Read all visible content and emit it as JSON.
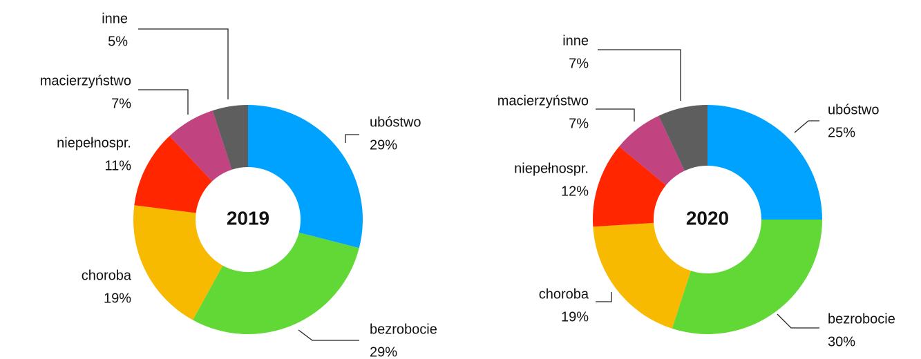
{
  "chart_data": [
    {
      "type": "pie",
      "title": "2019",
      "categories": [
        "ubóstwo",
        "bezrobocie",
        "choroba",
        "niepełnospr.",
        "macierzyństwo",
        "inne"
      ],
      "values": [
        29,
        29,
        19,
        11,
        7,
        5
      ],
      "value_labels": [
        "29%",
        "29%",
        "19%",
        "11%",
        "7%",
        "5%"
      ],
      "colors": [
        "#00a2ff",
        "#61d836",
        "#f8ba00",
        "#ff2600",
        "#c1437f",
        "#5e5e5e"
      ]
    },
    {
      "type": "pie",
      "title": "2020",
      "categories": [
        "ubóstwo",
        "bezrobocie",
        "choroba",
        "niepełnospr.",
        "macierzyństwo",
        "inne"
      ],
      "values": [
        25,
        30,
        19,
        12,
        7,
        7
      ],
      "value_labels": [
        "25%",
        "30%",
        "19%",
        "12%",
        "7%",
        "7%"
      ],
      "colors": [
        "#00a2ff",
        "#61d836",
        "#f8ba00",
        "#ff2600",
        "#c1437f",
        "#5e5e5e"
      ]
    }
  ]
}
